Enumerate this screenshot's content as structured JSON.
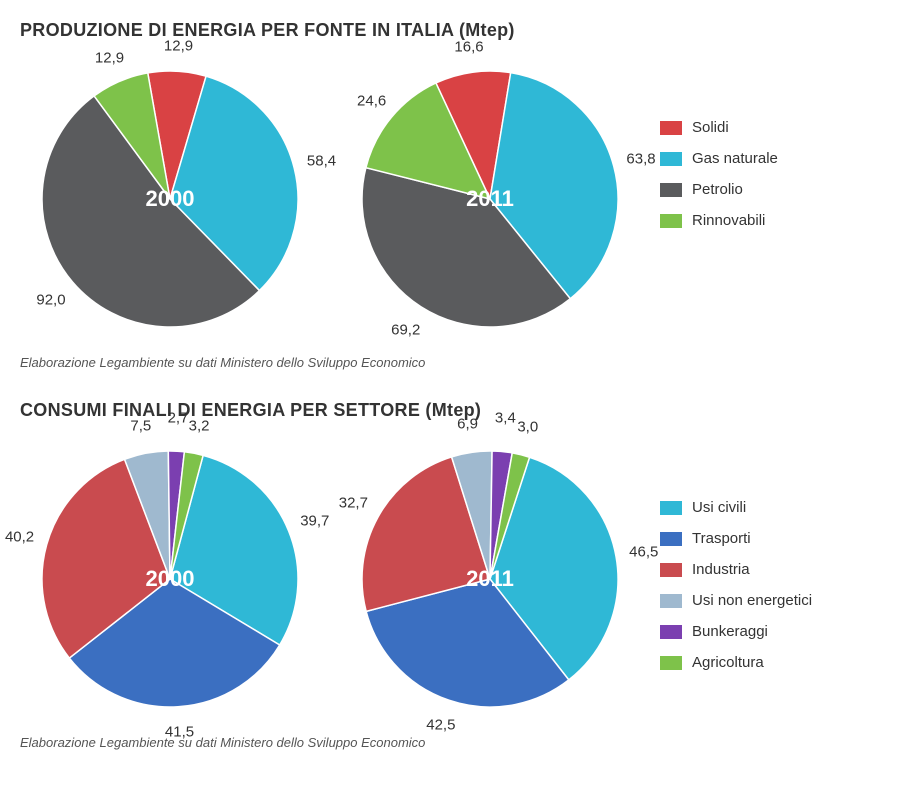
{
  "section1": {
    "title": "PRODUZIONE DI ENERGIA PER FONTE IN ITALIA (Mtep)",
    "caption": "Elaborazione Legambiente su dati Ministero dello Sviluppo Economico",
    "legend": [
      {
        "label": "Solidi",
        "color": "#d94244"
      },
      {
        "label": "Gas naturale",
        "color": "#2fb8d6"
      },
      {
        "label": "Petrolio",
        "color": "#5a5b5d"
      },
      {
        "label": "Rinnovabili",
        "color": "#7ec24a"
      }
    ],
    "pies": [
      {
        "year": "2000",
        "start_angle": -100,
        "slices": [
          {
            "value": 12.9,
            "label": "12,9",
            "color": "#d94244",
            "label_r": 1.2
          },
          {
            "value": 58.4,
            "label": "58,4",
            "color": "#2fb8d6",
            "label_r": 1.22
          },
          {
            "value": 92.0,
            "label": "92,0",
            "color": "#5a5b5d",
            "label_r": 1.22
          },
          {
            "value": 12.9,
            "label": "12,9",
            "color": "#7ec24a",
            "label_r": 1.2
          }
        ],
        "radius": 128,
        "canvas": 300,
        "year_color": "#ffffff",
        "year_fontsize": 22
      },
      {
        "year": "2011",
        "start_angle": -115,
        "slices": [
          {
            "value": 16.6,
            "label": "16,6",
            "color": "#d94244",
            "label_r": 1.2
          },
          {
            "value": 63.8,
            "label": "63,8",
            "color": "#2fb8d6",
            "label_r": 1.22
          },
          {
            "value": 69.2,
            "label": "69,2",
            "color": "#5a5b5d",
            "label_r": 1.22
          },
          {
            "value": 24.6,
            "label": "24,6",
            "color": "#7ec24a",
            "label_r": 1.2
          }
        ],
        "radius": 128,
        "canvas": 300,
        "year_color": "#ffffff",
        "year_fontsize": 22
      }
    ]
  },
  "section2": {
    "title": "CONSUMI FINALI DI ENERGIA PER SETTORE (Mtep)",
    "caption": "Elaborazione Legambiente su dati Ministero dello Sviluppo Economico",
    "legend": [
      {
        "label": "Usi civili",
        "color": "#2fb8d6"
      },
      {
        "label": "Trasporti",
        "color": "#3b6fc1"
      },
      {
        "label": "Industria",
        "color": "#c94b4f"
      },
      {
        "label": "Usi non energetici",
        "color": "#9fb9cf"
      },
      {
        "label": "Bunkeraggi",
        "color": "#7b3fb0"
      },
      {
        "label": "Agricoltura",
        "color": "#7ec24a"
      }
    ],
    "pies": [
      {
        "year": "2000",
        "start_angle": -75,
        "slices": [
          {
            "value": 39.7,
            "label": "39,7",
            "color": "#2fb8d6",
            "label_r": 1.22
          },
          {
            "value": 41.5,
            "label": "41,5",
            "color": "#3b6fc1",
            "label_r": 1.2
          },
          {
            "value": 40.2,
            "label": "40,2",
            "color": "#c94b4f",
            "label_r": 1.22
          },
          {
            "value": 7.5,
            "label": "7,5",
            "color": "#9fb9cf",
            "label_r": 1.22
          },
          {
            "value": 2.7,
            "label": "2,7",
            "color": "#7b3fb0",
            "label_r": 1.26
          },
          {
            "value": 3.2,
            "label": "3,2",
            "color": "#7ec24a",
            "label_r": 1.22
          }
        ],
        "radius": 128,
        "canvas": 300,
        "year_color": "#ffffff",
        "year_fontsize": 22
      },
      {
        "year": "2011",
        "start_angle": -72,
        "slices": [
          {
            "value": 46.5,
            "label": "46,5",
            "color": "#2fb8d6",
            "label_r": 1.22
          },
          {
            "value": 42.5,
            "label": "42,5",
            "color": "#3b6fc1",
            "label_r": 1.2
          },
          {
            "value": 32.7,
            "label": "32,7",
            "color": "#c94b4f",
            "label_r": 1.22
          },
          {
            "value": 6.9,
            "label": "6,9",
            "color": "#9fb9cf",
            "label_r": 1.22
          },
          {
            "value": 3.4,
            "label": "3,4",
            "color": "#7b3fb0",
            "label_r": 1.26
          },
          {
            "value": 3.0,
            "label": "3,0",
            "color": "#7ec24a",
            "label_r": 1.22
          }
        ],
        "radius": 128,
        "canvas": 300,
        "year_color": "#ffffff",
        "year_fontsize": 22
      }
    ]
  }
}
